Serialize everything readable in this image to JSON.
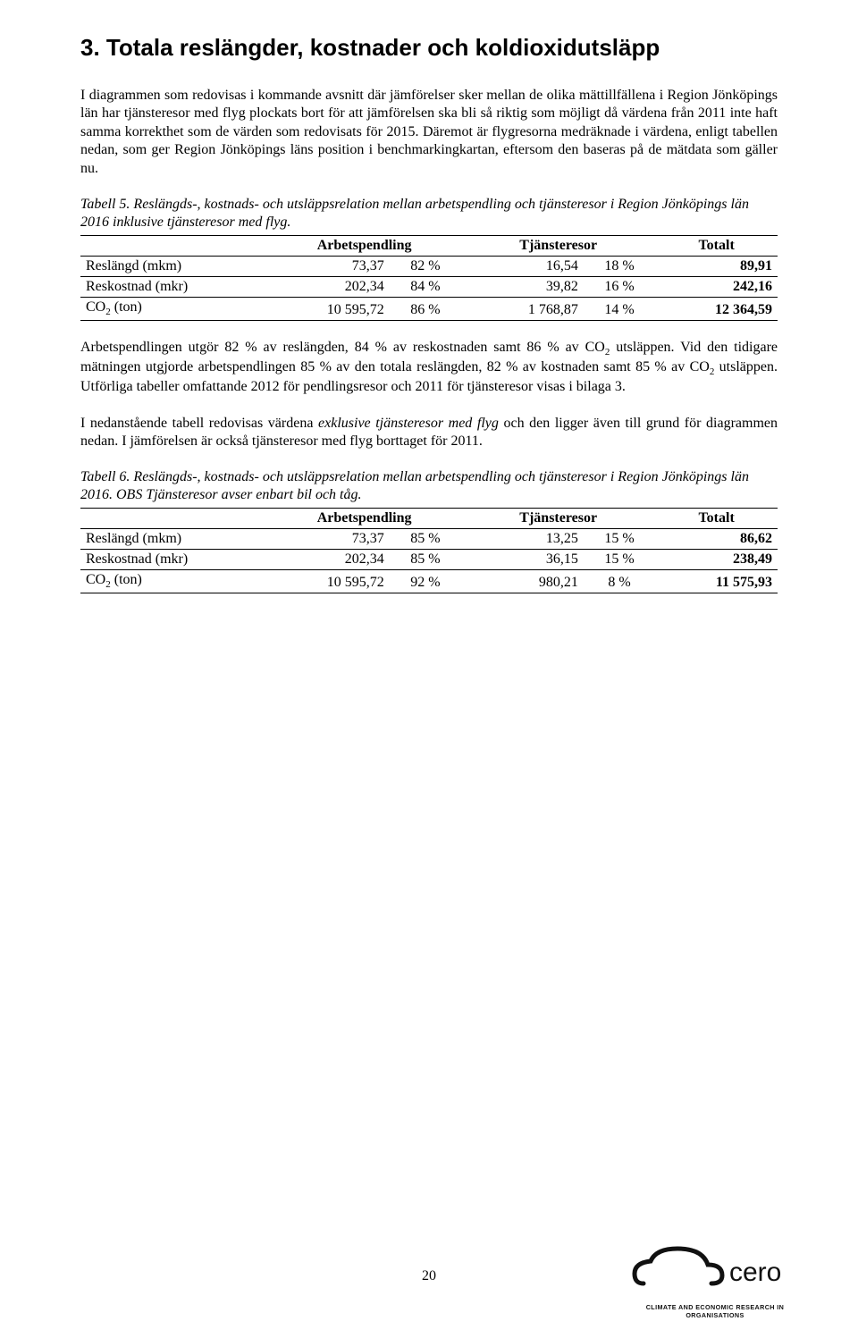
{
  "heading": "3. Totala reslängder, kostnader och koldioxidutsläpp",
  "para1": "I diagrammen som redovisas i kommande avsnitt där jämförelser sker mellan de olika mättillfällena i Region Jönköpings län har tjänsteresor med flyg plockats bort för att jämförelsen ska bli så riktig som möjligt då värdena från 2011 inte haft samma korrekthet som de värden som redovisats för 2015. Däremot är flygresorna medräknade i värdena, enligt tabellen nedan, som ger Region Jönköpings läns position i benchmarkingkartan, eftersom den baseras på de mätdata som gäller nu.",
  "table5": {
    "caption": "Tabell 5. Reslängds-, kostnads- och utsläppsrelation mellan arbetspendling och tjänsteresor i Region Jönköpings län 2016 inklusive tjänsteresor med flyg.",
    "columns": {
      "c1": "Arbetspendling",
      "c2": "Tjänsteresor",
      "c3": "Totalt"
    },
    "rows": [
      {
        "label": "Reslängd (mkm)",
        "v1": "73,37",
        "p1": "82 %",
        "v2": "16,54",
        "p2": "18 %",
        "tot": "89,91"
      },
      {
        "label": "Reskostnad (mkr)",
        "v1": "202,34",
        "p1": "84 %",
        "v2": "39,82",
        "p2": "16 %",
        "tot": "242,16"
      },
      {
        "label_html": "CO<span class=\"sub\">2</span> (ton)",
        "v1": "10 595,72",
        "p1": "86 %",
        "v2": "1 768,87",
        "p2": "14 %",
        "tot": "12 364,59"
      }
    ]
  },
  "para2_html": "Arbetspendlingen utgör 82 % av reslängden, 84 % av reskostnaden samt 86 % av CO<span class=\"sub\">2</span> utsläppen. Vid den tidigare mätningen utgjorde arbetspendlingen 85 % av den totala reslängden, 82 % av kostnaden samt 85 % av CO<span class=\"sub\">2</span> utsläppen. Utförliga tabeller omfattande 2012 för pendlingsresor och 2011 för tjänsteresor visas i bilaga 3.",
  "para3_html": "I nedanstående tabell redovisas värdena <i>exklusive tjänsteresor med flyg</i> och den ligger även till grund för diagrammen nedan. I jämförelsen är också tjänsteresor med flyg borttaget för 2011.",
  "table6": {
    "caption": "Tabell 6. Reslängds-, kostnads- och utsläppsrelation mellan arbetspendling och tjänsteresor i Region Jönköpings län 2016. OBS Tjänsteresor avser enbart bil och tåg.",
    "columns": {
      "c1": "Arbetspendling",
      "c2": "Tjänsteresor",
      "c3": "Totalt"
    },
    "rows": [
      {
        "label": "Reslängd (mkm)",
        "v1": "73,37",
        "p1": "85 %",
        "v2": "13,25",
        "p2": "15 %",
        "tot": "86,62"
      },
      {
        "label": "Reskostnad (mkr)",
        "v1": "202,34",
        "p1": "85 %",
        "v2": "36,15",
        "p2": "15 %",
        "tot": "238,49"
      },
      {
        "label_html": "CO<span class=\"sub\">2</span> (ton)",
        "v1": "10 595,72",
        "p1": "92 %",
        "v2": "980,21",
        "p2": "8 %",
        "tot": "11 575,93"
      }
    ]
  },
  "page_number": "20",
  "logo_subtext": "CLIMATE AND ECONOMIC RESEARCH IN ORGANISATIONS"
}
